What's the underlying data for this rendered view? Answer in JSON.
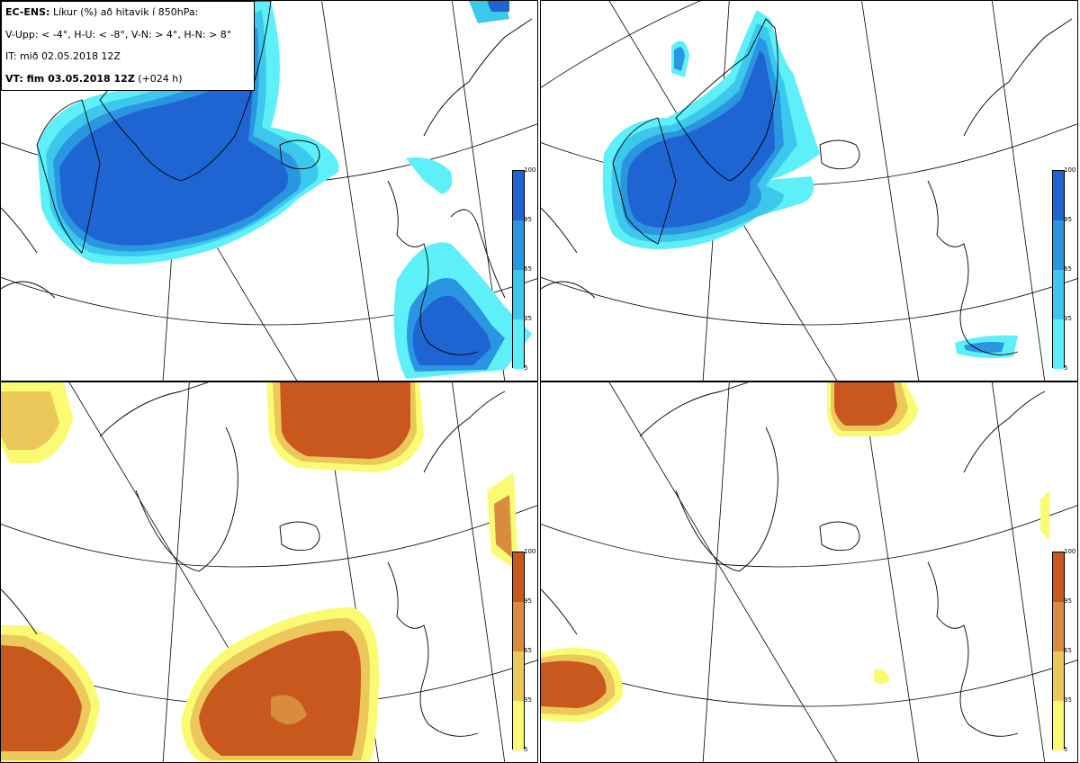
{
  "legend": {
    "line1_bold": "EC-ENS:",
    "line1_rest": " Líkur (%) að hitavik í 850hPa:",
    "line2": "V-Upp: < -4°, H-U: < -8°, V-N: > 4°, H-N: > 8°",
    "line3": "IT: mið 02.05.2018 12Z",
    "line4_bold": "VT: fim 03.05.2018 12Z",
    "line4_rest": " (+024 h)"
  },
  "colorbar_ticks": [
    "5",
    "35",
    "65",
    "95",
    "100"
  ],
  "colors": {
    "blue_scale": [
      "#5ef0f8",
      "#3cc8ec",
      "#2a95e0",
      "#1e64d2"
    ],
    "orange_scale": [
      "#fbfb73",
      "#ecc85a",
      "#d98c3e",
      "#c8581d"
    ],
    "coast": "#000000",
    "grid": "#000000"
  },
  "panels": [
    {
      "id": "top-left",
      "label": "V-Upp",
      "scale": "blue"
    },
    {
      "id": "top-right",
      "label": "H-U",
      "scale": "blue"
    },
    {
      "id": "bottom-left",
      "label": "V-N",
      "scale": "orange"
    },
    {
      "id": "bottom-right",
      "label": "H-N",
      "scale": "orange"
    }
  ]
}
